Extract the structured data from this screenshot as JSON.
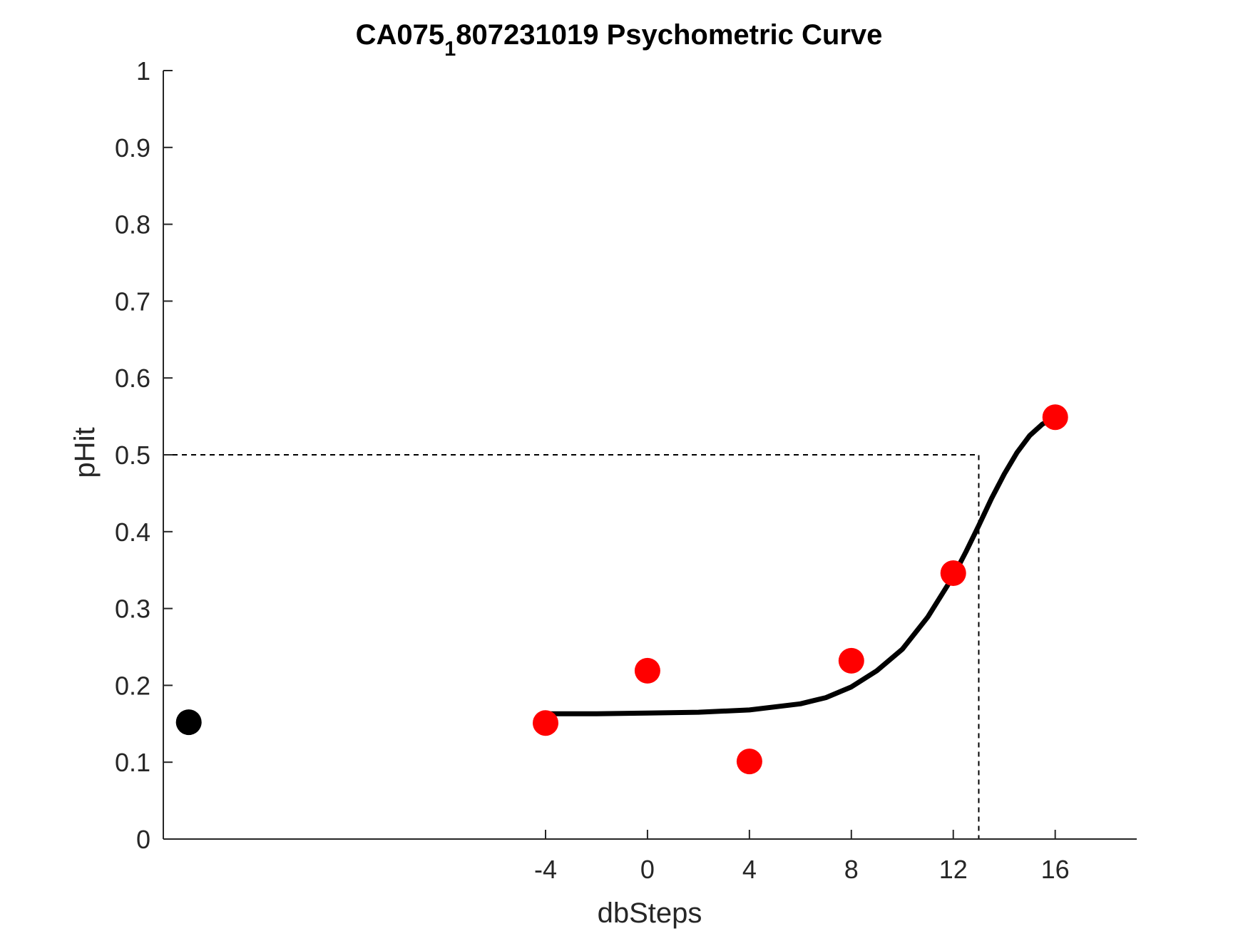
{
  "chart_data": {
    "type": "scatter",
    "title_main": "CA075",
    "title_subscript": "1",
    "title_rest": "807231019 Psychometric Curve",
    "xlabel": "dbSteps",
    "ylabel": "pHit",
    "xlim": [
      -19,
      19.2
    ],
    "ylim": [
      0,
      1
    ],
    "xticks": [
      -4,
      0,
      4,
      8,
      12,
      16
    ],
    "xtick_labels": [
      "-4",
      "0",
      "4",
      "8",
      "12",
      "16"
    ],
    "yticks": [
      0,
      0.1,
      0.2,
      0.3,
      0.4,
      0.5,
      0.6,
      0.7,
      0.8,
      0.9,
      1
    ],
    "ytick_labels": [
      "0",
      "0.1",
      "0.2",
      "0.3",
      "0.4",
      "0.5",
      "0.6",
      "0.7",
      "0.8",
      "0.9",
      "1"
    ],
    "grid": false,
    "series": [
      {
        "type": "scatter",
        "color": "#ff0000",
        "x": [
          -4,
          0,
          4,
          8,
          12,
          16
        ],
        "y": [
          0.151,
          0.219,
          0.101,
          0.232,
          0.346,
          0.549
        ]
      },
      {
        "type": "scatter",
        "color": "#000000",
        "x": [
          -18
        ],
        "y": [
          0.152
        ]
      },
      {
        "type": "line",
        "color": "#000000",
        "x": [
          -4,
          -2,
          0,
          2,
          4,
          6,
          7,
          8,
          9,
          10,
          11,
          12,
          12.5,
          13,
          13.5,
          14,
          14.5,
          15,
          15.5,
          16
        ],
        "y": [
          0.163,
          0.163,
          0.164,
          0.165,
          0.168,
          0.176,
          0.184,
          0.198,
          0.219,
          0.247,
          0.289,
          0.342,
          0.374,
          0.408,
          0.443,
          0.475,
          0.503,
          0.525,
          0.54,
          0.548
        ]
      }
    ],
    "reference_point": {
      "x": 13,
      "y": 0.5
    }
  }
}
